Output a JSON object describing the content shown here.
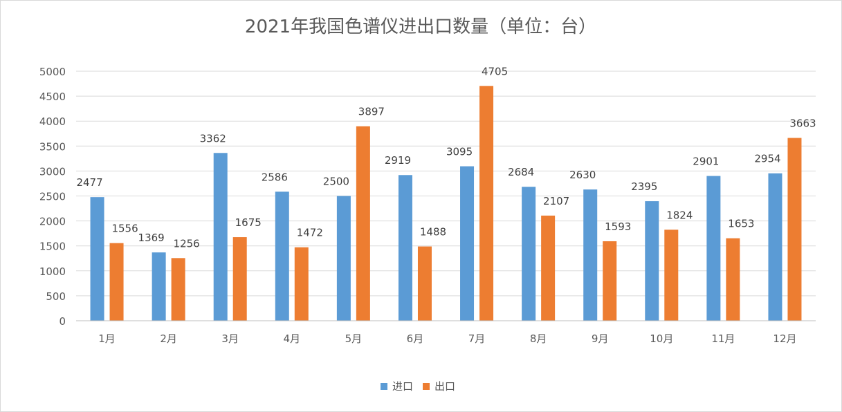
{
  "chart_data": {
    "type": "bar",
    "title": "2021年我国色谱仪进出口数量（单位：台）",
    "categories": [
      "1月",
      "2月",
      "3月",
      "4月",
      "5月",
      "6月",
      "7月",
      "8月",
      "9月",
      "10月",
      "11月",
      "12月"
    ],
    "series": [
      {
        "name": "进口",
        "color": "#5b9bd5",
        "values": [
          2477,
          1369,
          3362,
          2586,
          2500,
          2919,
          3095,
          2684,
          2630,
          2395,
          2901,
          2954
        ]
      },
      {
        "name": "出口",
        "color": "#ed7d31",
        "values": [
          1556,
          1256,
          1675,
          1472,
          3897,
          1488,
          4705,
          2107,
          1593,
          1824,
          1653,
          3663
        ]
      }
    ],
    "ylim": [
      0,
      5000
    ],
    "yticks": [
      0,
      500,
      1000,
      1500,
      2000,
      2500,
      3000,
      3500,
      4000,
      4500,
      5000
    ],
    "grid": true,
    "legend": "bottom-center",
    "data_labels": true
  }
}
